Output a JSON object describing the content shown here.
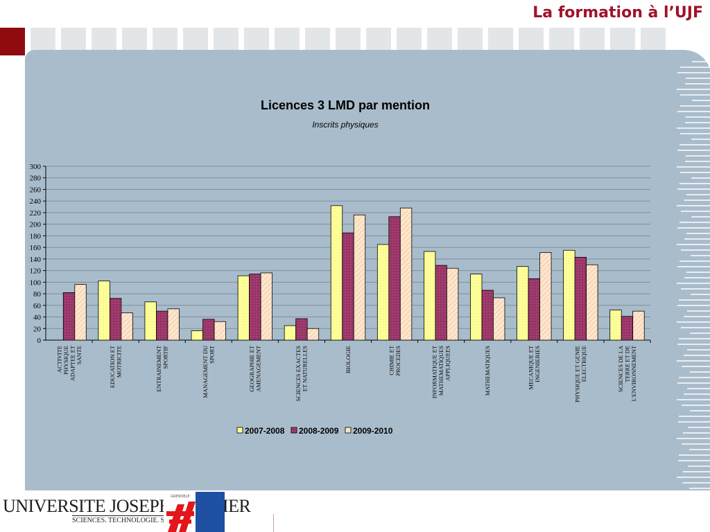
{
  "slide": {
    "title": "La formation à l’UJF",
    "logo_text": "UNIVERSITE JOSEPH FOURIER",
    "logo_subtitle": "SCIENCES. TECHNOLOGIE. SANTÉ",
    "logo_badge": "GRENOBLE"
  },
  "colors": {
    "series": [
      "#ffff99",
      "#993366",
      "#ffe6cc"
    ],
    "panel": "#a9bccb",
    "plot_bg": "#a9bccb",
    "accent": "#a0122a"
  },
  "chart_data": {
    "type": "bar",
    "title": "Licences 3 LMD par mention",
    "subtitle": "Inscrits physiques",
    "xlabel": "",
    "ylabel": "",
    "ylim": [
      0,
      300
    ],
    "yticks": [
      0,
      20,
      40,
      60,
      80,
      100,
      120,
      140,
      160,
      180,
      200,
      220,
      240,
      260,
      280,
      300
    ],
    "grid": true,
    "legend_position": "bottom",
    "categories": [
      [
        "ACTIVITE",
        "PHYSIQUE",
        "ADAPTEE ET",
        "SANTE"
      ],
      [
        "EDUCATION ET",
        "MOTRICITE"
      ],
      [
        "ENTRAINEMENT",
        "SPORTIF"
      ],
      [
        "MANAGEMENT DU",
        "SPORT"
      ],
      [
        "GEOGRAPHIE ET",
        "AMENAGEMENT"
      ],
      [
        "SCIENCES EXACTES",
        "ET NATURELLES"
      ],
      [
        "BIOLOGIE"
      ],
      [
        "CHIMIE ET",
        "PROCEDES"
      ],
      [
        "INFORMATIQUE ET",
        "MATHEMATIQUES",
        "APPLIQUEES"
      ],
      [
        "MATHEMATIQUES"
      ],
      [
        "MECANIQUE ET",
        "INGENIERIES"
      ],
      [
        "PHYSIQUE ET GENIE",
        "ELECTRIQUE"
      ],
      [
        "SCIENCES DE LA",
        "TERRE ET DE",
        "L'ENVIRONNEMENT"
      ]
    ],
    "series": [
      {
        "name": "2007-2008",
        "values": [
          0,
          102,
          66,
          16,
          111,
          25,
          232,
          165,
          153,
          114,
          127,
          155,
          52
        ]
      },
      {
        "name": "2008-2009",
        "values": [
          82,
          72,
          50,
          36,
          114,
          37,
          185,
          213,
          129,
          86,
          106,
          143,
          41
        ]
      },
      {
        "name": "2009-2010",
        "values": [
          96,
          47,
          54,
          32,
          116,
          20,
          216,
          228,
          124,
          73,
          151,
          130,
          50
        ]
      }
    ]
  }
}
